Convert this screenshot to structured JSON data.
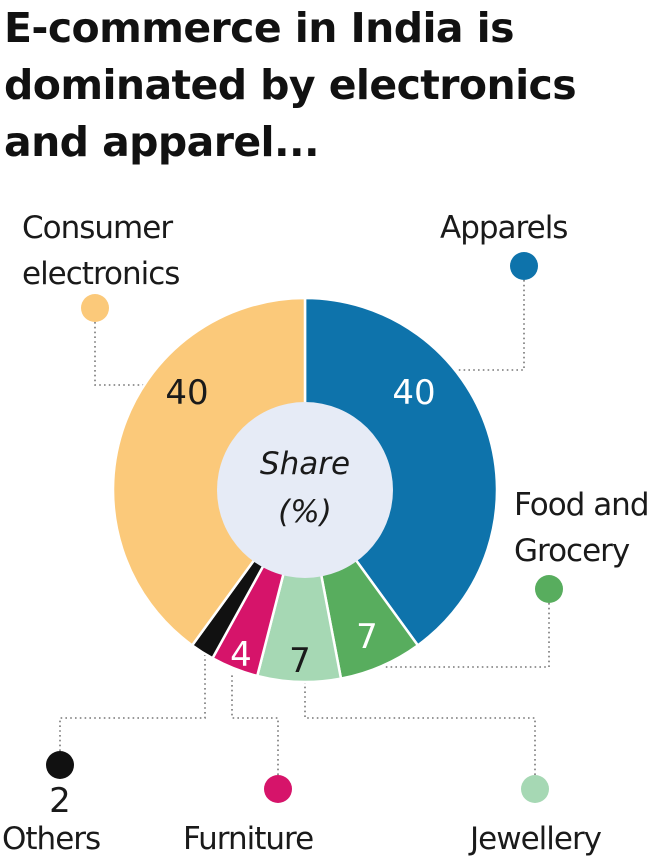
{
  "title_lines": [
    "E-commerce in India is",
    "dominated by electronics",
    "and apparel..."
  ],
  "center_label": [
    "Share",
    "(%)"
  ],
  "colors": {
    "consumer_electronics": "#fbc97a",
    "apparels": "#0e73ab",
    "food_grocery": "#58ad5e",
    "jewellery": "#a6d8b4",
    "furniture": "#d6146a",
    "others": "#111111",
    "hole": "#e6ebf6",
    "leader": "#777777"
  },
  "chart_data": {
    "type": "pie",
    "title": "E-commerce in India is dominated by electronics and apparel...",
    "center_text": "Share (%)",
    "slices": [
      {
        "label": "Apparels",
        "value": 40,
        "color_key": "apparels"
      },
      {
        "label": "Food and Grocery",
        "value": 7,
        "color_key": "food_grocery"
      },
      {
        "label": "Jewellery",
        "value": 7,
        "color_key": "jewellery"
      },
      {
        "label": "Furniture",
        "value": 4,
        "color_key": "furniture"
      },
      {
        "label": "Others",
        "value": 2,
        "color_key": "others"
      },
      {
        "label": "Consumer electronics",
        "value": 40,
        "color_key": "consumer_electronics"
      }
    ]
  }
}
